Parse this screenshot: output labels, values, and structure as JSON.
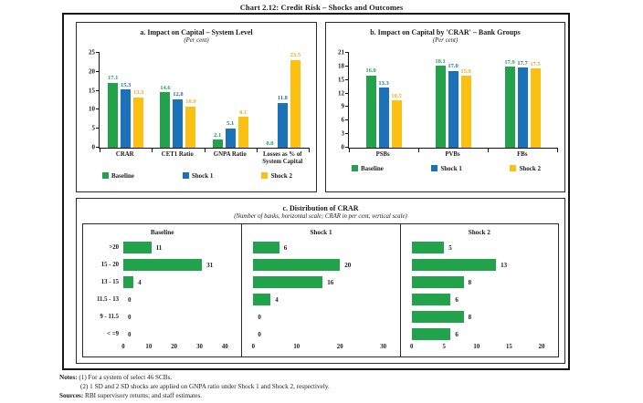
{
  "page_title": "Chart 2.12: Credit Risk – Shocks and Outcomes",
  "colors": {
    "baseline_green": "#23A24C",
    "shock1_blue": "#1B72B8",
    "shock2_yellow": "#FCC012"
  },
  "chart_data": [
    {
      "id": "impact-on-capital-system-level",
      "type": "bar",
      "title": "a. Impact on Capital – System Level",
      "subtitle": "(Per cent)",
      "categories": [
        "CRAR",
        "CET1 Ratio",
        "GNPA Ratio",
        "Losses as % of System Capital"
      ],
      "series": [
        {
          "name": "Baseline",
          "color": "#23A24C",
          "label_color": "#23A24C",
          "values": [
            17.1,
            14.6,
            2.1,
            0.0
          ]
        },
        {
          "name": "Shock 1",
          "color": "#1B72B8",
          "label_color": "#1B72B8",
          "values": [
            15.3,
            12.8,
            5.1,
            11.8
          ]
        },
        {
          "name": "Shock 2",
          "color": "#FCC012",
          "label_color": "#EFAD1D",
          "values": [
            13.3,
            10.9,
            8.1,
            23.5
          ]
        }
      ],
      "ylim": [
        0,
        25
      ],
      "yticks": [
        0,
        5,
        10,
        15,
        20,
        25
      ],
      "grid": false,
      "legend_position": "bottom"
    },
    {
      "id": "impact-on-capital-by-crar-bank-groups",
      "type": "bar",
      "title": "b. Impact on Capital by 'CRAR' – Bank Groups",
      "subtitle": "(Per cent)",
      "categories": [
        "PSBs",
        "PVBs",
        "FBs"
      ],
      "series": [
        {
          "name": "Baseline",
          "color": "#23A24C",
          "label_color": "#23A24C",
          "values": [
            16.0,
            18.1,
            17.9
          ]
        },
        {
          "name": "Shock 1",
          "color": "#1B72B8",
          "label_color": "#1B72B8",
          "values": [
            13.3,
            17.0,
            17.7
          ]
        },
        {
          "name": "Shock 2",
          "color": "#FCC012",
          "label_color": "#EFAD1D",
          "values": [
            10.5,
            15.9,
            17.5
          ]
        }
      ],
      "ylim": [
        0,
        21
      ],
      "yticks": [
        0,
        3,
        6,
        9,
        12,
        15,
        18,
        21
      ],
      "grid": false,
      "legend_position": "bottom"
    },
    {
      "id": "distribution-of-crar",
      "type": "bar",
      "orientation": "horizontal",
      "title": "c. Distribution of CRAR",
      "subtitle": "(Number of banks, horizontal scale; CRAR in per cent, vertical scale)",
      "categories": [
        ">20",
        "15 - 20",
        "13 - 15",
        "11.5 - 13",
        "9 - 11.5",
        "< =9"
      ],
      "bar_color": "#23A24C",
      "panels": [
        {
          "title": "Baseline",
          "values": [
            11,
            31,
            4,
            0,
            0,
            0
          ],
          "xticks": [
            0,
            10,
            20,
            30,
            40
          ],
          "xmax": 40
        },
        {
          "title": "Shock 1",
          "values": [
            6,
            20,
            16,
            4,
            0,
            0
          ],
          "xticks": [
            0,
            10,
            20,
            30
          ],
          "xmax": 30
        },
        {
          "title": "Shock 2",
          "values": [
            5,
            13,
            8,
            6,
            8,
            6
          ],
          "xticks": [
            0,
            5,
            10,
            15,
            20
          ],
          "xmax": 20
        }
      ]
    }
  ],
  "notes": {
    "label": "Notes:",
    "line1": "(1) For a system of select 46 SCBs.",
    "line2": "(2) 1 SD and 2 SD shocks are applied on GNPA ratio under Shock 1 and Shock 2, respectively.",
    "sources_label": "Sources:",
    "sources_text": "RBI supervisory returns; and staff estimates."
  }
}
